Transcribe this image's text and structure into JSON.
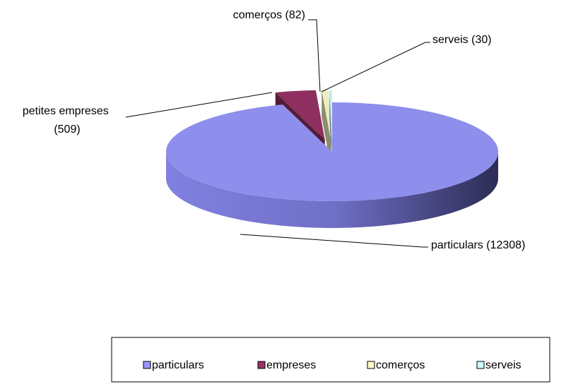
{
  "chart_data": {
    "type": "pie",
    "categories": [
      "particulars",
      "empreses",
      "comerços",
      "serveis"
    ],
    "values": [
      12308,
      509,
      82,
      30
    ],
    "value_labels": [
      "particulars (12308)",
      "petites empreses (509)",
      "comerços (82)",
      "serveis (30)"
    ],
    "colors": [
      "#9999ff",
      "#993366",
      "#ffffcc",
      "#ccffff"
    ],
    "three_d": true,
    "legend": "bottom"
  }
}
